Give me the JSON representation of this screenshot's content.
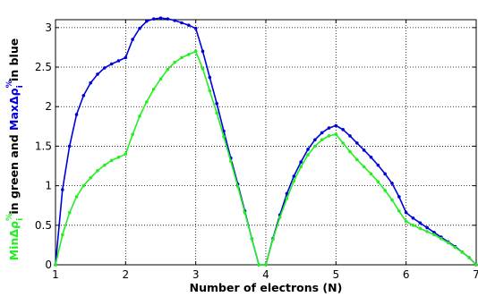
{
  "chart_data": {
    "type": "line",
    "xlabel": "Number of electrons (N)",
    "ylabel_parts": {
      "min_label": "Min",
      "delta_rho": "Δρ",
      "sup_pct": "%",
      "sub_i": "i",
      "in_green_and": " in green and ",
      "max_label": "Max",
      "in_blue": " in blue"
    },
    "xlim": [
      1,
      7
    ],
    "ylim": [
      0,
      3.1
    ],
    "xticks": [
      1,
      2,
      3,
      4,
      5,
      6,
      7
    ],
    "xtick_labels": [
      "1",
      "2",
      "3",
      "4",
      "5",
      "6",
      "7"
    ],
    "yticks": [
      0,
      0.5,
      1,
      1.5,
      2,
      2.5,
      3
    ],
    "ytick_labels": [
      "0",
      "0.5",
      "1",
      "1.5",
      "2",
      "2.5",
      "3"
    ],
    "grid": true,
    "series": [
      {
        "key": "max",
        "color": "#0000dd",
        "x": [
          1.0,
          1.1,
          1.2,
          1.3,
          1.4,
          1.5,
          1.6,
          1.7,
          1.8,
          1.9,
          2.0,
          2.1,
          2.2,
          2.3,
          2.4,
          2.5,
          2.6,
          2.7,
          2.8,
          2.9,
          3.0,
          3.1,
          3.2,
          3.3,
          3.4,
          3.5,
          3.6,
          3.7,
          3.8,
          3.9,
          4.0,
          4.1,
          4.2,
          4.3,
          4.4,
          4.5,
          4.6,
          4.7,
          4.8,
          4.9,
          5.0,
          5.1,
          5.2,
          5.3,
          5.4,
          5.5,
          5.6,
          5.7,
          5.8,
          5.9,
          6.0,
          6.1,
          6.2,
          6.3,
          6.4,
          6.5,
          6.6,
          6.7,
          6.8,
          6.9,
          7.0
        ],
        "values": [
          0.0,
          0.95,
          1.5,
          1.9,
          2.14,
          2.3,
          2.41,
          2.49,
          2.54,
          2.58,
          2.62,
          2.85,
          2.99,
          3.08,
          3.11,
          3.12,
          3.11,
          3.09,
          3.06,
          3.03,
          2.99,
          2.7,
          2.37,
          2.04,
          1.69,
          1.35,
          1.02,
          0.68,
          0.33,
          0.0,
          0.0,
          0.33,
          0.63,
          0.9,
          1.12,
          1.3,
          1.46,
          1.58,
          1.67,
          1.73,
          1.76,
          1.71,
          1.63,
          1.54,
          1.45,
          1.36,
          1.26,
          1.15,
          1.03,
          0.86,
          0.66,
          0.59,
          0.53,
          0.47,
          0.41,
          0.35,
          0.29,
          0.23,
          0.16,
          0.09,
          0.0
        ]
      },
      {
        "key": "min",
        "color": "#22ee22",
        "x": [
          1.0,
          1.1,
          1.2,
          1.3,
          1.4,
          1.5,
          1.6,
          1.7,
          1.8,
          1.9,
          2.0,
          2.1,
          2.2,
          2.3,
          2.4,
          2.5,
          2.6,
          2.7,
          2.8,
          2.9,
          3.0,
          3.1,
          3.2,
          3.3,
          3.4,
          3.5,
          3.6,
          3.7,
          3.8,
          3.9,
          4.0,
          4.1,
          4.2,
          4.3,
          4.4,
          4.5,
          4.6,
          4.7,
          4.8,
          4.9,
          5.0,
          5.1,
          5.2,
          5.3,
          5.4,
          5.5,
          5.6,
          5.7,
          5.8,
          5.9,
          6.0,
          6.1,
          6.2,
          6.3,
          6.4,
          6.5,
          6.6,
          6.7,
          6.8,
          6.9,
          7.0
        ],
        "values": [
          0.0,
          0.38,
          0.66,
          0.86,
          1.0,
          1.1,
          1.19,
          1.26,
          1.32,
          1.36,
          1.4,
          1.65,
          1.88,
          2.06,
          2.22,
          2.35,
          2.47,
          2.56,
          2.62,
          2.66,
          2.7,
          2.48,
          2.2,
          1.92,
          1.62,
          1.31,
          0.99,
          0.66,
          0.33,
          0.0,
          0.0,
          0.32,
          0.6,
          0.84,
          1.06,
          1.24,
          1.39,
          1.5,
          1.58,
          1.63,
          1.65,
          1.54,
          1.43,
          1.33,
          1.24,
          1.15,
          1.05,
          0.94,
          0.82,
          0.68,
          0.55,
          0.5,
          0.46,
          0.42,
          0.38,
          0.33,
          0.28,
          0.22,
          0.16,
          0.09,
          0.0
        ]
      }
    ]
  }
}
